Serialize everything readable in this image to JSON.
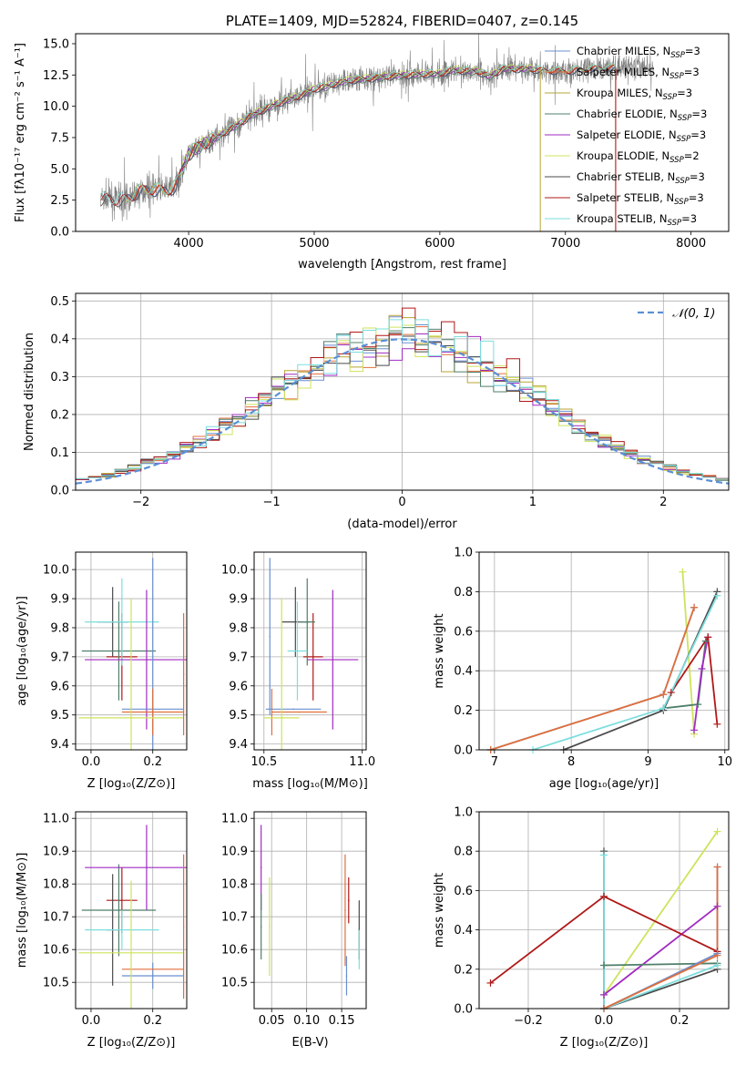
{
  "figure": {
    "title": "PLATE=1409, MJD=52824, FIBERID=0407, z=0.145"
  },
  "colors": {
    "gray_data": "#808080",
    "steelblue": "#6a8fcf",
    "salmon": "#e06f3a",
    "olive": "#b8a533",
    "teal": "#4f7f6b",
    "purple": "#a02bc0",
    "lime": "#cfe35c",
    "darkgray": "#4a4a4a",
    "crimson": "#b01818",
    "cyan": "#7ddede",
    "normal": "#5b8fd6"
  },
  "chart_data": [
    {
      "id": "spectrum",
      "type": "line",
      "title": "PLATE=1409, MJD=52824, FIBERID=0407, z=0.145",
      "xlabel": "wavelength [Angstrom, rest frame]",
      "ylabel": "Flux [fλ10⁻¹⁷ erg cm⁻² s⁻¹ A⁻¹]",
      "xlim": [
        3100,
        8300
      ],
      "ylim": [
        0,
        15.8
      ],
      "xticks": [
        "4000",
        "5000",
        "6000",
        "7000",
        "8000"
      ],
      "yticks": [
        "0.0",
        "2.5",
        "5.0",
        "7.5",
        "10.0",
        "12.5",
        "15.0"
      ],
      "continuum": {
        "x": [
          3300,
          3500,
          3600,
          3700,
          3800,
          3900,
          4000,
          4100,
          4200,
          4300,
          4400,
          4500,
          4700,
          4900,
          5000,
          5100,
          5200,
          5300,
          5500,
          5700,
          5900,
          6000,
          6100,
          6300,
          6400,
          6500,
          6700,
          6800,
          7000,
          7200,
          7400
        ],
        "y": [
          2.6,
          2.5,
          3.2,
          3.4,
          3.2,
          3.6,
          6.2,
          6.9,
          7.4,
          8.0,
          8.6,
          9.3,
          10.2,
          10.9,
          11.4,
          11.6,
          11.9,
          12.1,
          12.3,
          12.5,
          12.6,
          12.6,
          12.9,
          12.8,
          12.4,
          13.0,
          13.0,
          12.9,
          12.8,
          13.0,
          13.1
        ]
      },
      "data_end": 7700,
      "series": [
        {
          "name": "Chabrier MILES, N_SSP=3",
          "label_main": "Chabrier MILES, N",
          "label_sub": "SSP",
          "label_tail": "=3",
          "color": "steelblue",
          "range": [
            3500,
            7400
          ]
        },
        {
          "name": "Salpeter MILES, N_SSP=3",
          "label_main": "Salpeter MILES, N",
          "label_sub": "SSP",
          "label_tail": "=3",
          "color": "salmon",
          "range": [
            3500,
            7400
          ]
        },
        {
          "name": "Kroupa MILES, N_SSP=3",
          "label_main": "Kroupa MILES, N",
          "label_sub": "SSP",
          "label_tail": "=3",
          "color": "olive",
          "range": [
            3500,
            7400
          ]
        },
        {
          "name": "Chabrier ELODIE, N_SSP=3",
          "label_main": "Chabrier ELODIE, N",
          "label_sub": "SSP",
          "label_tail": "=3",
          "color": "teal",
          "range": [
            3950,
            6800
          ]
        },
        {
          "name": "Salpeter ELODIE, N_SSP=3",
          "label_main": "Salpeter ELODIE, N",
          "label_sub": "SSP",
          "label_tail": "=3",
          "color": "purple",
          "range": [
            3950,
            6800
          ]
        },
        {
          "name": "Kroupa ELODIE, N_SSP=2",
          "label_main": "Kroupa ELODIE, N",
          "label_sub": "SSP",
          "label_tail": "=2",
          "color": "lime",
          "range": [
            3950,
            6800
          ]
        },
        {
          "name": "Chabrier STELIB, N_SSP=3",
          "label_main": "Chabrier STELIB, N",
          "label_sub": "SSP",
          "label_tail": "=3",
          "color": "darkgray",
          "range": [
            3300,
            7400
          ]
        },
        {
          "name": "Salpeter STELIB, N_SSP=3",
          "label_main": "Salpeter STELIB, N",
          "label_sub": "SSP",
          "label_tail": "=3",
          "color": "crimson",
          "range": [
            3300,
            7400
          ]
        },
        {
          "name": "Kroupa STELIB, N_SSP=3",
          "label_main": "Kroupa STELIB, N",
          "label_sub": "SSP",
          "label_tail": "=3",
          "color": "cyan",
          "range": [
            3300,
            7400
          ]
        }
      ],
      "legend": "top-right",
      "grid": false
    },
    {
      "id": "residuals",
      "type": "histogram",
      "xlabel": "(data-model)/error",
      "ylabel": "Normed distribution",
      "xlim": [
        -2.5,
        2.5
      ],
      "ylim": [
        0,
        0.52
      ],
      "xticks": [
        "−2",
        "−1",
        "0",
        "1",
        "2"
      ],
      "yticks": [
        "0.0",
        "0.1",
        "0.2",
        "0.3",
        "0.4",
        "0.5"
      ],
      "bin_width": 0.1,
      "reference_label": "𝒩(0, 1)",
      "legend": "top-right",
      "grid": true
    },
    {
      "id": "age-vs-Z",
      "type": "scatter",
      "xlabel": "Z [log₁₀(Z/Z⊙)]",
      "ylabel": "age  [log₁₀(age/yr)]",
      "xlim": [
        -0.05,
        0.31
      ],
      "ylim": [
        9.38,
        10.06
      ],
      "xticks": [
        "0.0",
        "0.2"
      ],
      "yticks": [
        "9.4",
        "9.5",
        "9.6",
        "9.7",
        "9.8",
        "9.9",
        "10.0"
      ],
      "points": [
        {
          "x": 0.1,
          "y": 9.7,
          "xerr": 0.05,
          "yerr": 0.15,
          "color": "crimson"
        },
        {
          "x": 0.07,
          "y": 9.82,
          "xerr": 0.05,
          "yerr": 0.12,
          "color": "darkgray"
        },
        {
          "x": 0.09,
          "y": 9.72,
          "xerr": 0.12,
          "yerr": 0.17,
          "color": "teal"
        },
        {
          "x": 0.1,
          "y": 9.82,
          "xerr": 0.12,
          "yerr": 0.15,
          "color": "cyan"
        },
        {
          "x": 0.18,
          "y": 9.69,
          "xerr": 0.2,
          "yerr": 0.24,
          "color": "purple"
        },
        {
          "x": 0.2,
          "y": 9.52,
          "xerr": 0.1,
          "yerr": 0.52,
          "color": "steelblue"
        },
        {
          "x": 0.2,
          "y": 9.51,
          "xerr": 0.1,
          "yerr": 0.08,
          "color": "salmon"
        },
        {
          "x": 0.13,
          "y": 9.49,
          "xerr": 0.17,
          "yerr": 0.41,
          "color": "lime"
        },
        {
          "x": 0.3,
          "y": 9.64,
          "xerr": 0.0,
          "yerr": 0.21,
          "color": "salmon"
        }
      ],
      "grid": true
    },
    {
      "id": "age-vs-mass",
      "type": "scatter",
      "xlabel": "mass [log₁₀(M/M⊙)]",
      "xlim": [
        10.45,
        11.02
      ],
      "ylim": [
        9.38,
        10.06
      ],
      "xticks": [
        "10.5",
        "11.0"
      ],
      "yticks": [
        "9.4",
        "9.5",
        "9.6",
        "9.7",
        "9.8",
        "9.9",
        "10.0"
      ],
      "points": [
        {
          "x": 10.75,
          "y": 9.7,
          "xerr": 0.05,
          "yerr": 0.15,
          "color": "crimson"
        },
        {
          "x": 10.66,
          "y": 9.82,
          "xerr": 0.07,
          "yerr": 0.12,
          "color": "darkgray"
        },
        {
          "x": 10.72,
          "y": 9.82,
          "xerr": 0.04,
          "yerr": 0.15,
          "color": "teal"
        },
        {
          "x": 10.67,
          "y": 9.72,
          "xerr": 0.05,
          "yerr": 0.17,
          "color": "cyan"
        },
        {
          "x": 10.85,
          "y": 9.69,
          "xerr": 0.13,
          "yerr": 0.24,
          "color": "purple"
        },
        {
          "x": 10.53,
          "y": 9.77,
          "xerr": 0.0,
          "yerr": 0.27,
          "color": "steelblue"
        },
        {
          "x": 10.65,
          "y": 9.52,
          "xerr": 0.14,
          "yerr": 0.0,
          "color": "steelblue"
        },
        {
          "x": 10.54,
          "y": 9.51,
          "xerr": 0.0,
          "yerr": 0.08,
          "color": "salmon"
        },
        {
          "x": 10.68,
          "y": 9.51,
          "xerr": 0.14,
          "yerr": 0.0,
          "color": "salmon"
        },
        {
          "x": 10.59,
          "y": 9.49,
          "xerr": 0.09,
          "yerr": 0.41,
          "color": "lime"
        }
      ],
      "grid": true
    },
    {
      "id": "weight-vs-age",
      "type": "line",
      "xlabel": "age  [log₁₀(age/yr)]",
      "ylabel": "mass weight",
      "xlim": [
        6.8,
        10.05
      ],
      "ylim": [
        0,
        1.0
      ],
      "xticks": [
        "7",
        "8",
        "9",
        "10"
      ],
      "yticks": [
        "0.0",
        "0.2",
        "0.4",
        "0.6",
        "0.8",
        "1.0"
      ],
      "series": [
        {
          "color": "lime",
          "x": [
            9.45,
            9.6
          ],
          "y": [
            0.9,
            0.08
          ]
        },
        {
          "color": "teal",
          "x": [
            9.2,
            9.65,
            9.75
          ],
          "y": [
            0.21,
            0.23,
            0.55
          ]
        },
        {
          "color": "purple",
          "x": [
            9.6,
            9.7,
            9.78
          ],
          "y": [
            0.1,
            0.41,
            0.57
          ]
        },
        {
          "color": "crimson",
          "x": [
            9.3,
            9.78,
            9.9
          ],
          "y": [
            0.29,
            0.57,
            0.13
          ]
        },
        {
          "color": "darkgray",
          "x": [
            7.9,
            9.2,
            9.9
          ],
          "y": [
            0.0,
            0.2,
            0.8
          ]
        },
        {
          "color": "cyan",
          "x": [
            7.5,
            9.2,
            9.9
          ],
          "y": [
            0.0,
            0.21,
            0.78
          ]
        },
        {
          "color": "steelblue",
          "x": [
            6.95,
            9.2,
            9.6
          ],
          "y": [
            0.0,
            0.28,
            0.72
          ]
        },
        {
          "color": "salmon",
          "x": [
            6.95,
            9.2,
            9.6
          ],
          "y": [
            0.0,
            0.28,
            0.72
          ]
        }
      ],
      "grid": true
    },
    {
      "id": "mass-vs-Z",
      "type": "scatter",
      "xlabel": "Z [log₁₀(Z/Z⊙)]",
      "ylabel": "mass [log₁₀(M/M⊙)]",
      "xlim": [
        -0.05,
        0.31
      ],
      "ylim": [
        10.42,
        11.02
      ],
      "xticks": [
        "0.0",
        "0.2"
      ],
      "yticks": [
        "10.5",
        "10.6",
        "10.7",
        "10.8",
        "10.9",
        "11.0"
      ],
      "points": [
        {
          "x": 0.1,
          "y": 10.75,
          "xerr": 0.05,
          "yerr": 0.1,
          "color": "crimson"
        },
        {
          "x": 0.07,
          "y": 10.66,
          "xerr": 0.02,
          "yerr": 0.17,
          "color": "darkgray"
        },
        {
          "x": 0.09,
          "y": 10.72,
          "xerr": 0.12,
          "yerr": 0.14,
          "color": "teal"
        },
        {
          "x": 0.1,
          "y": 10.66,
          "xerr": 0.12,
          "yerr": 0.06,
          "color": "cyan"
        },
        {
          "x": 0.18,
          "y": 10.85,
          "xerr": 0.2,
          "yerr": 0.13,
          "color": "purple"
        },
        {
          "x": 0.2,
          "y": 10.52,
          "xerr": 0.1,
          "yerr": 0.04,
          "color": "steelblue"
        },
        {
          "x": 0.2,
          "y": 10.54,
          "xerr": 0.1,
          "yerr": 0.0,
          "color": "salmon"
        },
        {
          "x": 0.13,
          "y": 10.59,
          "xerr": 0.17,
          "yerr": 0.22,
          "color": "lime"
        },
        {
          "x": 0.3,
          "y": 10.67,
          "xerr": 0.0,
          "yerr": 0.22,
          "color": "salmon"
        }
      ],
      "grid": true
    },
    {
      "id": "mass-vs-EBV",
      "type": "scatter",
      "xlabel": "E(B-V)",
      "xlim": [
        0.025,
        0.185
      ],
      "ylim": [
        10.42,
        11.02
      ],
      "xticks": [
        "0.05",
        "0.10",
        "0.15"
      ],
      "yticks": [
        "10.5",
        "10.6",
        "10.7",
        "10.8",
        "10.9",
        "11.0"
      ],
      "points": [
        {
          "x": 0.035,
          "y": 10.85,
          "xerr": 0.0,
          "yerr": 0.13,
          "color": "purple"
        },
        {
          "x": 0.035,
          "y": 10.67,
          "xerr": 0.0,
          "yerr": 0.1,
          "color": "teal"
        },
        {
          "x": 0.047,
          "y": 10.67,
          "xerr": 0.0,
          "yerr": 0.15,
          "color": "lime"
        },
        {
          "x": 0.155,
          "y": 10.72,
          "xerr": 0.0,
          "yerr": 0.17,
          "color": "salmon"
        },
        {
          "x": 0.157,
          "y": 10.52,
          "xerr": 0.0,
          "yerr": 0.06,
          "color": "steelblue"
        },
        {
          "x": 0.16,
          "y": 10.75,
          "xerr": 0.0,
          "yerr": 0.07,
          "color": "crimson"
        },
        {
          "x": 0.175,
          "y": 10.66,
          "xerr": 0.0,
          "yerr": 0.09,
          "color": "darkgray"
        },
        {
          "x": 0.175,
          "y": 10.6,
          "xerr": 0.0,
          "yerr": 0.06,
          "color": "cyan"
        }
      ],
      "grid": true
    },
    {
      "id": "weight-vs-Z",
      "type": "line",
      "xlabel": "Z [log₁₀(Z/Z⊙)]",
      "ylabel": "mass weight",
      "xlim": [
        -0.33,
        0.33
      ],
      "ylim": [
        0,
        1.0
      ],
      "xticks": [
        "−0.2",
        "0.0",
        "0.2"
      ],
      "yticks": [
        "0.0",
        "0.2",
        "0.4",
        "0.6",
        "0.8",
        "1.0"
      ],
      "series": [
        {
          "color": "lime",
          "x": [
            0.0,
            0.3
          ],
          "y": [
            0.07,
            0.9
          ]
        },
        {
          "color": "purple",
          "x": [
            0.0,
            0.3
          ],
          "y": [
            0.07,
            0.52
          ]
        },
        {
          "color": "crimson",
          "x": [
            -0.3,
            0.0,
            0.3
          ],
          "y": [
            0.13,
            0.57,
            0.29
          ]
        },
        {
          "color": "teal",
          "x": [
            0.0,
            0.3
          ],
          "y": [
            0.22,
            0.23
          ]
        },
        {
          "color": "darkgray",
          "x": [
            0.0,
            0.0,
            0.3
          ],
          "y": [
            0.8,
            0.0,
            0.2
          ]
        },
        {
          "color": "cyan",
          "x": [
            0.0,
            0.0,
            0.3
          ],
          "y": [
            0.78,
            0.0,
            0.22
          ]
        },
        {
          "color": "steelblue",
          "x": [
            0.0,
            0.3,
            0.3
          ],
          "y": [
            0.0,
            0.28,
            0.72
          ]
        },
        {
          "color": "salmon",
          "x": [
            0.0,
            0.3,
            0.3
          ],
          "y": [
            0.0,
            0.27,
            0.72
          ]
        }
      ],
      "grid": true
    }
  ]
}
